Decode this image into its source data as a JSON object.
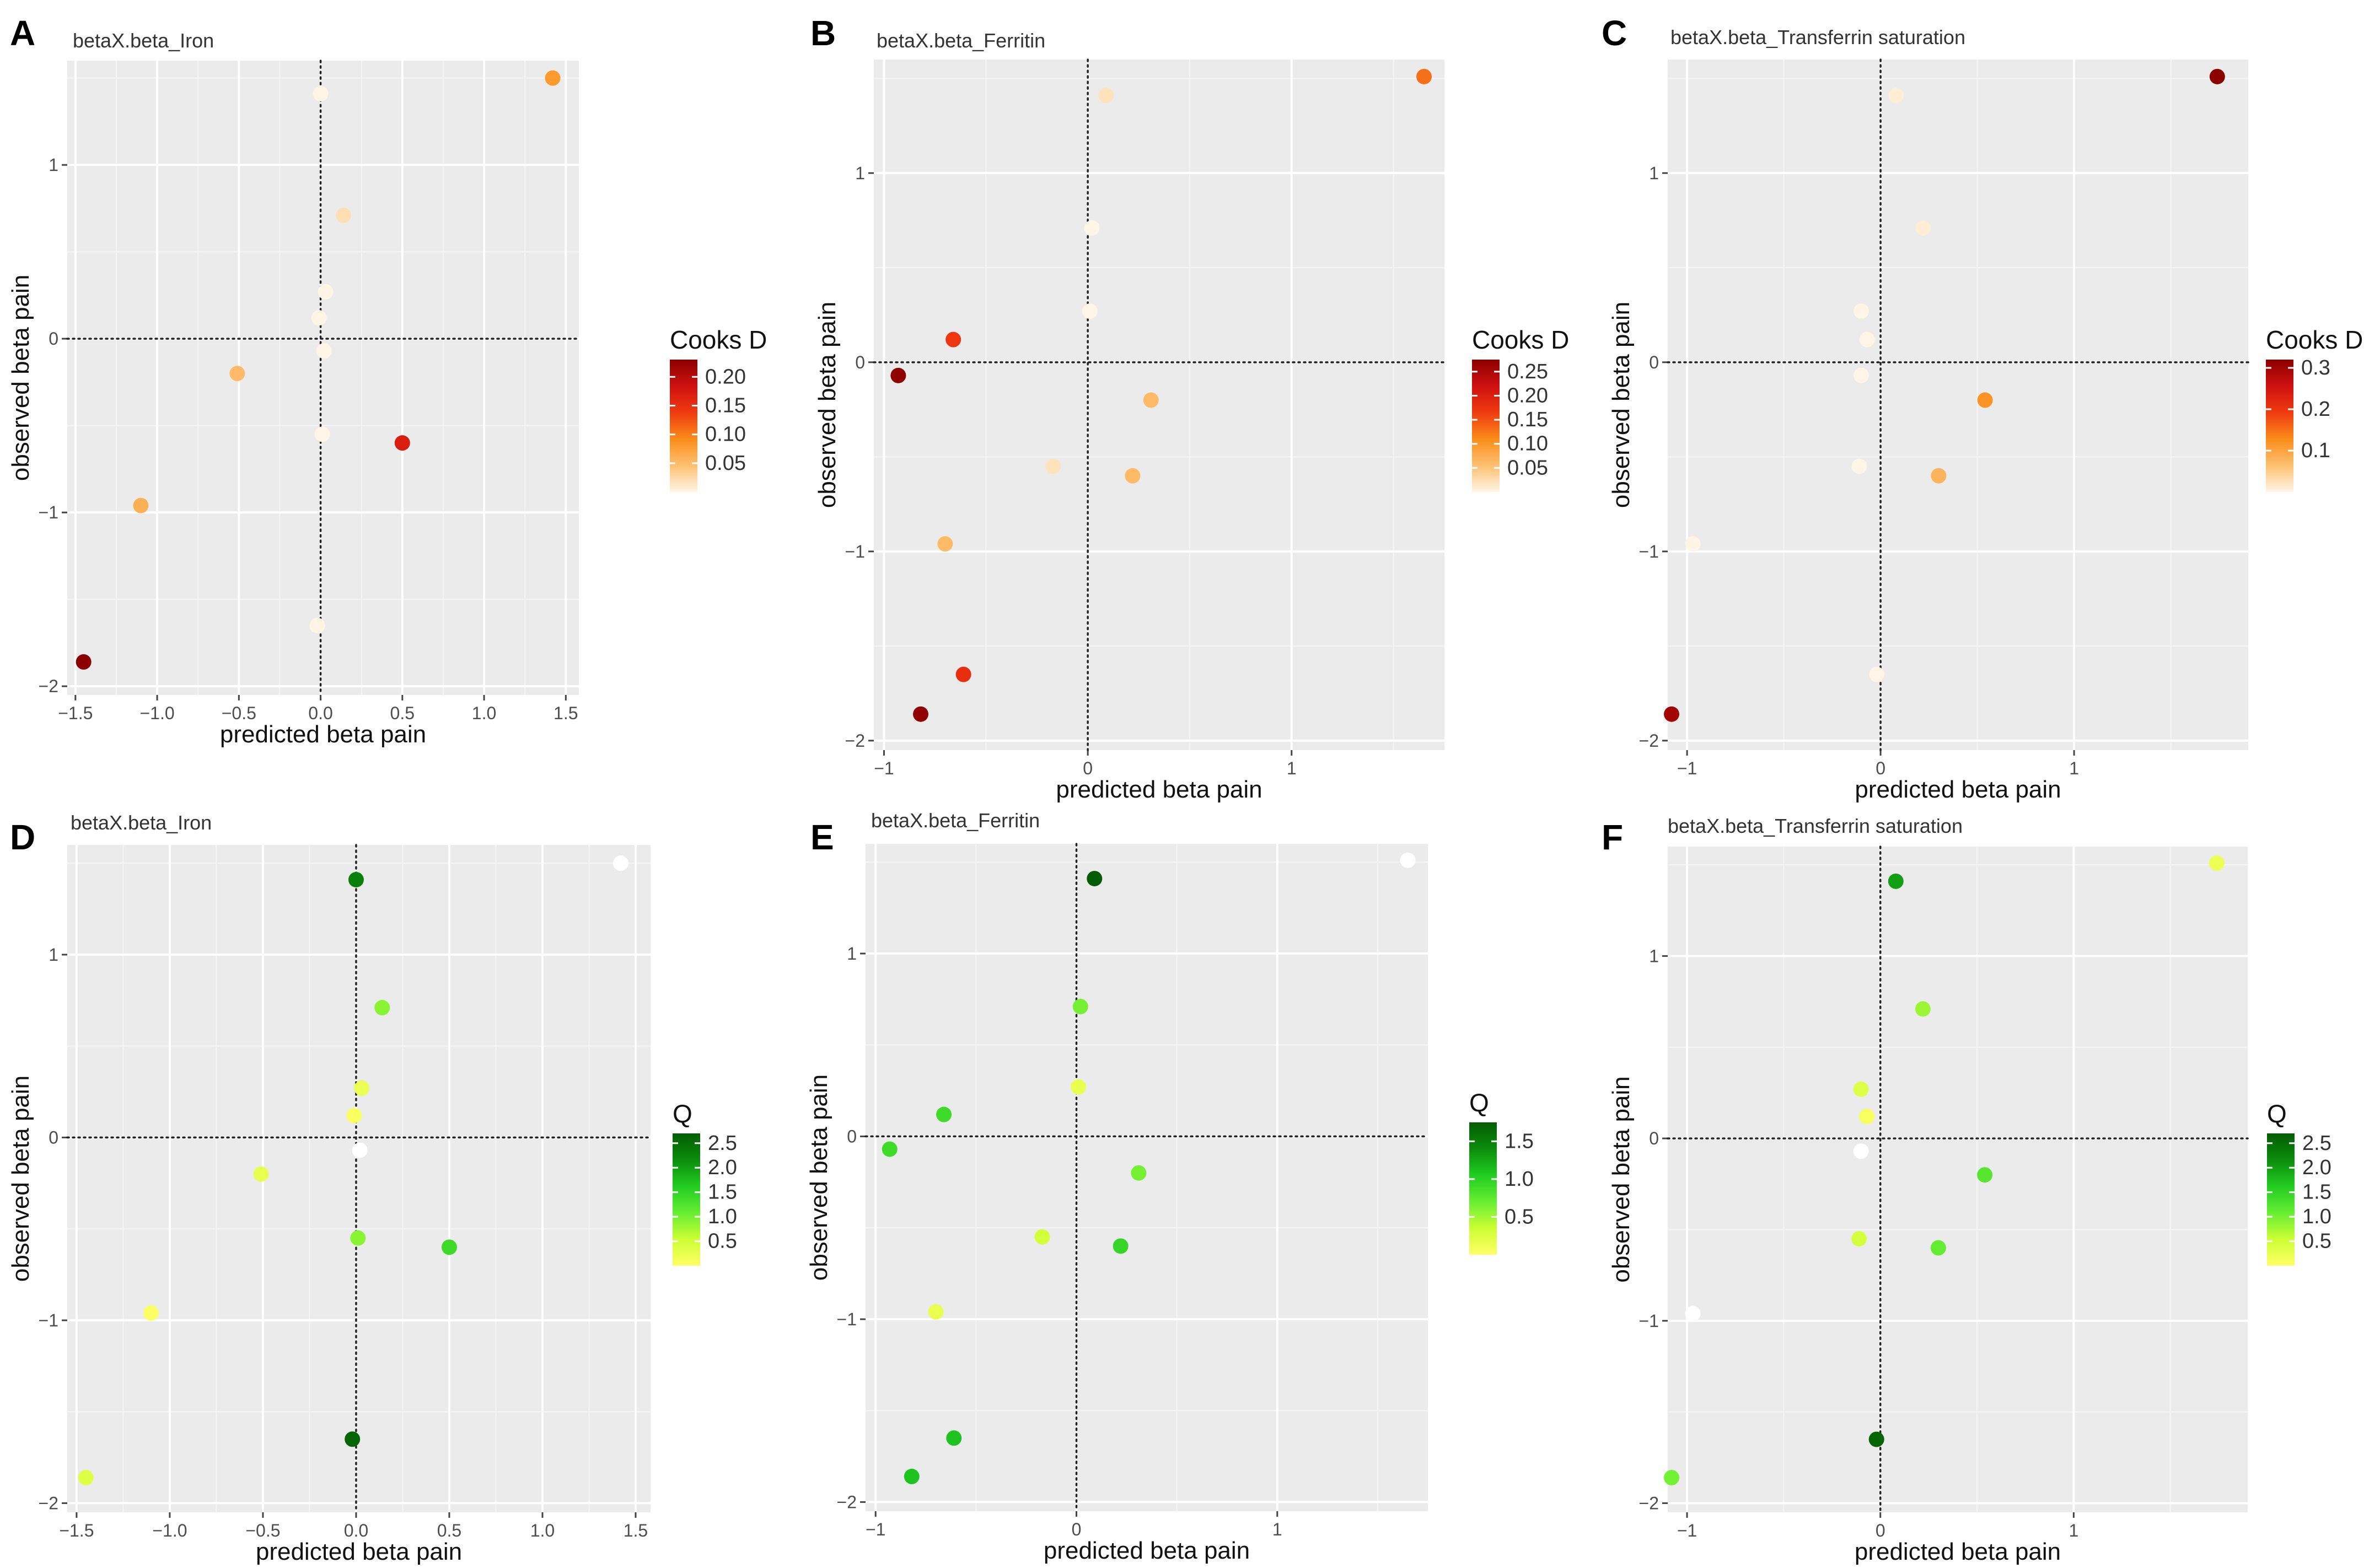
{
  "figure": {
    "x_axis_label": "predicted beta pain",
    "y_axis_label": "observed beta pain"
  },
  "chart_data": [
    {
      "panel": "A",
      "type": "scatter",
      "title": "betaX.beta_Iron",
      "xlabel": "predicted beta pain",
      "ylabel": "observed beta pain",
      "xlim": [
        -1.55,
        1.58
      ],
      "ylim": [
        -2.05,
        1.6
      ],
      "xticks": [
        -1.5,
        -1.0,
        -0.5,
        0.0,
        0.5,
        1.0,
        1.5
      ],
      "xtick_labels": [
        "−1.5",
        "−1.0",
        "−0.5",
        "0.0",
        "0.5",
        "1.0",
        "1.5"
      ],
      "yticks": [
        -2,
        -1,
        0,
        1
      ],
      "ytick_labels": [
        "−2",
        "−1",
        "0",
        "1"
      ],
      "legend": {
        "title": "Cooks D",
        "ticks": [
          0.05,
          0.1,
          0.15,
          0.2
        ],
        "tick_labels": [
          "0.05",
          "0.10",
          "0.15",
          "0.20"
        ],
        "range": [
          0.0,
          0.23
        ],
        "colors": [
          "#fff5e6",
          "#fdc070",
          "#fb8c1a",
          "#ef3b10",
          "#d01010",
          "#8b0000"
        ]
      },
      "points": [
        {
          "x": 1.42,
          "y": 1.5,
          "c": 0.08
        },
        {
          "x": 0.0,
          "y": 1.41,
          "c": 0.0
        },
        {
          "x": 0.14,
          "y": 0.71,
          "c": 0.02
        },
        {
          "x": 0.03,
          "y": 0.27,
          "c": 0.0
        },
        {
          "x": -0.01,
          "y": 0.12,
          "c": 0.0
        },
        {
          "x": 0.02,
          "y": -0.07,
          "c": 0.0
        },
        {
          "x": -0.51,
          "y": -0.2,
          "c": 0.05
        },
        {
          "x": 0.01,
          "y": -0.55,
          "c": 0.0
        },
        {
          "x": 0.5,
          "y": -0.6,
          "c": 0.17
        },
        {
          "x": -1.1,
          "y": -0.96,
          "c": 0.06
        },
        {
          "x": -0.02,
          "y": -1.65,
          "c": 0.0
        },
        {
          "x": -1.45,
          "y": -1.86,
          "c": 0.23
        }
      ]
    },
    {
      "panel": "B",
      "type": "scatter",
      "title": "betaX.beta_Ferritin",
      "xlabel": "predicted beta pain",
      "ylabel": "observed beta pain",
      "xlim": [
        -1.05,
        1.75
      ],
      "ylim": [
        -2.05,
        1.6
      ],
      "xticks": [
        -1,
        0,
        1
      ],
      "xtick_labels": [
        "−1",
        "0",
        "1"
      ],
      "yticks": [
        -2,
        -1,
        0,
        1
      ],
      "ytick_labels": [
        "−2",
        "−1",
        "0",
        "1"
      ],
      "legend": {
        "title": "Cooks D",
        "ticks": [
          0.05,
          0.1,
          0.15,
          0.2,
          0.25
        ],
        "tick_labels": [
          "0.05",
          "0.10",
          "0.15",
          "0.20",
          "0.25"
        ],
        "range": [
          0.0,
          0.275
        ],
        "colors": [
          "#fff5e6",
          "#fdc070",
          "#fb8c1a",
          "#ef3b10",
          "#d01010",
          "#8b0000"
        ]
      },
      "points": [
        {
          "x": 1.65,
          "y": 1.51,
          "c": 0.13
        },
        {
          "x": 0.09,
          "y": 1.41,
          "c": 0.02
        },
        {
          "x": 0.02,
          "y": 0.71,
          "c": 0.0
        },
        {
          "x": 0.01,
          "y": 0.27,
          "c": 0.0
        },
        {
          "x": -0.66,
          "y": 0.12,
          "c": 0.17
        },
        {
          "x": -0.93,
          "y": -0.07,
          "c": 0.27
        },
        {
          "x": 0.31,
          "y": -0.2,
          "c": 0.06
        },
        {
          "x": -0.17,
          "y": -0.55,
          "c": 0.02
        },
        {
          "x": 0.22,
          "y": -0.6,
          "c": 0.06
        },
        {
          "x": -0.7,
          "y": -0.96,
          "c": 0.06
        },
        {
          "x": -0.61,
          "y": -1.65,
          "c": 0.18
        },
        {
          "x": -0.82,
          "y": -1.86,
          "c": 0.27
        }
      ]
    },
    {
      "panel": "C",
      "type": "scatter",
      "title": "betaX.beta_Transferrin saturation",
      "xlabel": "predicted beta pain",
      "ylabel": "observed beta pain",
      "xlim": [
        -1.1,
        1.9
      ],
      "ylim": [
        -2.05,
        1.6
      ],
      "xticks": [
        -1,
        0,
        1
      ],
      "xtick_labels": [
        "−1",
        "0",
        "1"
      ],
      "yticks": [
        -2,
        -1,
        0,
        1
      ],
      "ytick_labels": [
        "−2",
        "−1",
        "0",
        "1"
      ],
      "legend": {
        "title": "Cooks D",
        "ticks": [
          0.1,
          0.2,
          0.3
        ],
        "tick_labels": [
          "0.1",
          "0.2",
          "0.3"
        ],
        "range": [
          0.0,
          0.32
        ],
        "colors": [
          "#fff5e6",
          "#fdc070",
          "#fb8c1a",
          "#ef3b10",
          "#d01010",
          "#8b0000"
        ]
      },
      "points": [
        {
          "x": 1.74,
          "y": 1.51,
          "c": 0.32
        },
        {
          "x": 0.08,
          "y": 1.41,
          "c": 0.01
        },
        {
          "x": 0.22,
          "y": 0.71,
          "c": 0.01
        },
        {
          "x": -0.1,
          "y": 0.27,
          "c": 0.0
        },
        {
          "x": -0.07,
          "y": 0.12,
          "c": 0.0
        },
        {
          "x": -0.1,
          "y": -0.07,
          "c": 0.0
        },
        {
          "x": 0.54,
          "y": -0.2,
          "c": 0.12
        },
        {
          "x": -0.11,
          "y": -0.55,
          "c": 0.0
        },
        {
          "x": 0.3,
          "y": -0.6,
          "c": 0.08
        },
        {
          "x": -0.97,
          "y": -0.96,
          "c": 0.0
        },
        {
          "x": -0.02,
          "y": -1.65,
          "c": 0.0
        },
        {
          "x": -1.08,
          "y": -1.86,
          "c": 0.3
        }
      ]
    },
    {
      "panel": "D",
      "type": "scatter",
      "title": "betaX.beta_Iron",
      "xlabel": "predicted beta pain",
      "ylabel": "observed beta pain",
      "xlim": [
        -1.55,
        1.58
      ],
      "ylim": [
        -2.05,
        1.6
      ],
      "xticks": [
        -1.5,
        -1.0,
        -0.5,
        0.0,
        0.5,
        1.0,
        1.5
      ],
      "xtick_labels": [
        "−1.5",
        "−1.0",
        "−0.5",
        "0.0",
        "0.5",
        "1.0",
        "1.5"
      ],
      "yticks": [
        -2,
        -1,
        0,
        1
      ],
      "ytick_labels": [
        "−2",
        "−1",
        "0",
        "1"
      ],
      "legend": {
        "title": "Q",
        "ticks": [
          0.5,
          1.0,
          1.5,
          2.0,
          2.5
        ],
        "tick_labels": [
          "0.5",
          "1.0",
          "1.5",
          "2.0",
          "2.5"
        ],
        "range": [
          0.0,
          2.7
        ],
        "colors": [
          "#ffff66",
          "#ccff33",
          "#66ee33",
          "#22cc22",
          "#0c8c0c",
          "#035c03"
        ]
      },
      "points": [
        {
          "x": 1.42,
          "y": 1.5,
          "q": null
        },
        {
          "x": 0.0,
          "y": 1.41,
          "q": 2.3
        },
        {
          "x": 0.14,
          "y": 0.71,
          "q": 0.9
        },
        {
          "x": 0.03,
          "y": 0.27,
          "q": 0.2
        },
        {
          "x": -0.01,
          "y": 0.12,
          "q": 0.05
        },
        {
          "x": 0.02,
          "y": -0.07,
          "q": null
        },
        {
          "x": -0.51,
          "y": -0.2,
          "q": 0.25
        },
        {
          "x": 0.01,
          "y": -0.55,
          "q": 0.9
        },
        {
          "x": 0.5,
          "y": -0.6,
          "q": 1.4
        },
        {
          "x": -1.1,
          "y": -0.96,
          "q": 0.03
        },
        {
          "x": -0.02,
          "y": -1.65,
          "q": 2.6
        },
        {
          "x": -1.45,
          "y": -1.86,
          "q": 0.35
        }
      ]
    },
    {
      "panel": "E",
      "type": "scatter",
      "title": "betaX.beta_Ferritin",
      "xlabel": "predicted beta pain",
      "ylabel": "observed beta pain",
      "xlim": [
        -1.05,
        1.75
      ],
      "ylim": [
        -2.05,
        1.6
      ],
      "xticks": [
        -1,
        0,
        1
      ],
      "xtick_labels": [
        "−1",
        "0",
        "1"
      ],
      "yticks": [
        -2,
        -1,
        0,
        1
      ],
      "ytick_labels": [
        "−2",
        "−1",
        "0",
        "1"
      ],
      "legend": {
        "title": "Q",
        "ticks": [
          0.5,
          1.0,
          1.5
        ],
        "tick_labels": [
          "0.5",
          "1.0",
          "1.5"
        ],
        "range": [
          0.0,
          1.75
        ],
        "colors": [
          "#ffff66",
          "#ccff33",
          "#66ee33",
          "#22cc22",
          "#0c8c0c",
          "#035c03"
        ]
      },
      "points": [
        {
          "x": 1.65,
          "y": 1.51,
          "q": null
        },
        {
          "x": 0.09,
          "y": 1.41,
          "q": 1.75
        },
        {
          "x": 0.02,
          "y": 0.71,
          "q": 0.65
        },
        {
          "x": 0.01,
          "y": 0.27,
          "q": 0.15
        },
        {
          "x": -0.66,
          "y": 0.12,
          "q": 0.9
        },
        {
          "x": -0.93,
          "y": -0.07,
          "q": 0.9
        },
        {
          "x": 0.31,
          "y": -0.2,
          "q": 0.65
        },
        {
          "x": -0.17,
          "y": -0.55,
          "q": 0.3
        },
        {
          "x": 0.22,
          "y": -0.6,
          "q": 0.95
        },
        {
          "x": -0.7,
          "y": -0.96,
          "q": 0.15
        },
        {
          "x": -0.61,
          "y": -1.65,
          "q": 1.1
        },
        {
          "x": -0.82,
          "y": -1.86,
          "q": 1.1
        }
      ]
    },
    {
      "panel": "F",
      "type": "scatter",
      "title": "betaX.beta_Transferrin saturation",
      "xlabel": "predicted beta pain",
      "ylabel": "observed beta pain",
      "xlim": [
        -1.1,
        1.9
      ],
      "ylim": [
        -2.05,
        1.6
      ],
      "xticks": [
        -1,
        0,
        1
      ],
      "xtick_labels": [
        "−1",
        "0",
        "1"
      ],
      "yticks": [
        -2,
        -1,
        0,
        1
      ],
      "ytick_labels": [
        "−2",
        "−1",
        "0",
        "1"
      ],
      "legend": {
        "title": "Q",
        "ticks": [
          0.5,
          1.0,
          1.5,
          2.0,
          2.5
        ],
        "tick_labels": [
          "0.5",
          "1.0",
          "1.5",
          "2.0",
          "2.5"
        ],
        "range": [
          0.0,
          2.7
        ],
        "colors": [
          "#ffff66",
          "#ccff33",
          "#66ee33",
          "#22cc22",
          "#0c8c0c",
          "#035c03"
        ]
      },
      "points": [
        {
          "x": 1.74,
          "y": 1.51,
          "q": 0.2
        },
        {
          "x": 0.08,
          "y": 1.41,
          "q": 2.0
        },
        {
          "x": 0.22,
          "y": 0.71,
          "q": 0.8
        },
        {
          "x": -0.1,
          "y": 0.27,
          "q": 0.35
        },
        {
          "x": -0.07,
          "y": 0.12,
          "q": 0.1
        },
        {
          "x": -0.1,
          "y": -0.07,
          "q": null
        },
        {
          "x": 0.54,
          "y": -0.2,
          "q": 1.2
        },
        {
          "x": -0.11,
          "y": -0.55,
          "q": 0.45
        },
        {
          "x": 0.3,
          "y": -0.6,
          "q": 1.1
        },
        {
          "x": -0.97,
          "y": -0.96,
          "q": null
        },
        {
          "x": -0.02,
          "y": -1.65,
          "q": 2.6
        },
        {
          "x": -1.08,
          "y": -1.86,
          "q": 1.0
        }
      ]
    }
  ]
}
